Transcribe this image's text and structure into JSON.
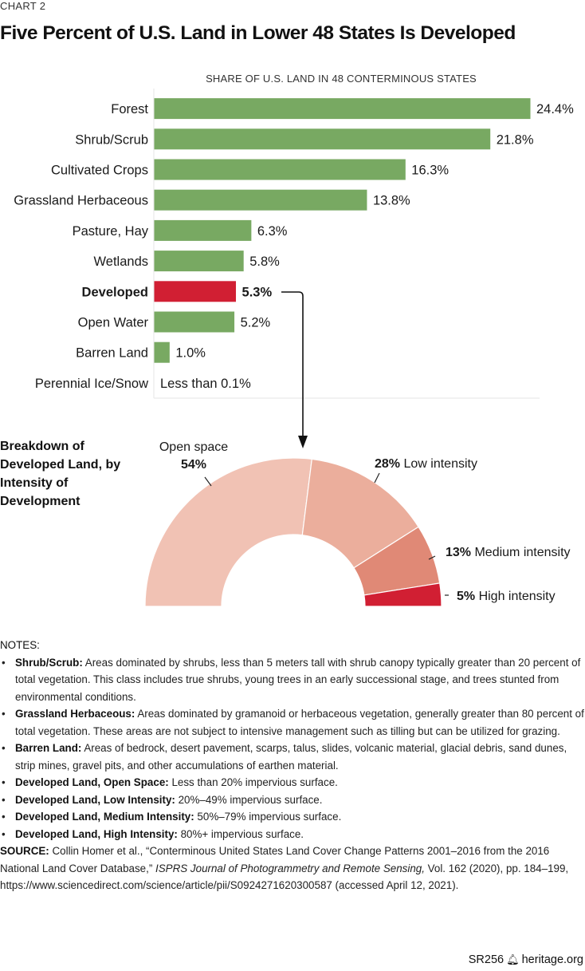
{
  "header": {
    "chart_number": "CHART 2",
    "title": "Five Percent of U.S. Land in Lower 48 States Is Developed"
  },
  "colors": {
    "green_bar": "#78a962",
    "highlight_bar": "#d11f33",
    "open_space": "#f1c2b4",
    "low_intensity": "#ebae9c",
    "medium_intensity": "#e08976",
    "high_intensity": "#d11f33"
  },
  "chart_data": [
    {
      "type": "bar",
      "orientation": "horizontal",
      "title": "SHARE OF U.S. LAND IN 48 CONTERMINOUS STATES",
      "xlabel": "",
      "ylabel": "",
      "unit": "%",
      "grid": false,
      "categories": [
        "Forest",
        "Shrub/Scrub",
        "Cultivated Crops",
        "Grassland Herbaceous",
        "Pasture, Hay",
        "Wetlands",
        "Developed",
        "Open Water",
        "Barren Land",
        "Perennial Ice/Snow"
      ],
      "values": [
        24.4,
        21.8,
        16.3,
        13.8,
        6.3,
        5.8,
        5.3,
        5.2,
        1.0,
        0.0
      ],
      "labels": [
        "24.4%",
        "21.8%",
        "16.3%",
        "13.8%",
        "6.3%",
        "5.8%",
        "5.3%",
        "5.2%",
        "1.0%",
        "Less than 0.1%"
      ],
      "highlight": "Developed",
      "xlim": [
        0,
        24.4
      ]
    },
    {
      "type": "pie",
      "variant": "half-donut",
      "title": "Breakdown of Developed Land, by Intensity of Development",
      "slices": [
        {
          "name": "Open space",
          "value": 54,
          "label": "54%"
        },
        {
          "name": "Low intensity",
          "value": 28,
          "label": "28%"
        },
        {
          "name": "Medium intensity",
          "value": 13,
          "label": "13%"
        },
        {
          "name": "High intensity",
          "value": 5,
          "label": "5%"
        }
      ]
    }
  ],
  "breakdown_title": "Breakdown of Developed Land, by Intensity of Development",
  "notes": {
    "heading": "NOTES:",
    "items": [
      {
        "term": "Shrub/Scrub:",
        "text": " Areas dominated by shrubs, less than 5 meters tall with shrub canopy typically greater than 20 percent of total vegetation. This class includes true shrubs, young trees in an early successional stage, and trees stunted from environmental conditions."
      },
      {
        "term": "Grassland Herbaceous:",
        "text": " Areas dominated by gramanoid or herbaceous vegetation, generally greater than 80 percent of total vegetation. These areas are not subject to intensive management such as tilling but can be utilized for grazing."
      },
      {
        "term": "Barren Land:",
        "text": " Areas of bedrock, desert pavement, scarps, talus, slides, volcanic material, glacial debris, sand dunes, strip mines, gravel pits, and other accumulations of earthen material."
      },
      {
        "term": "Developed Land, Open Space:",
        "text": " Less than 20% impervious surface."
      },
      {
        "term": "Developed Land, Low Intensity:",
        "text": " 20%–49% impervious surface."
      },
      {
        "term": "Developed Land, Medium Intensity:",
        "text": " 50%–79% impervious surface."
      },
      {
        "term": "Developed Land, High Intensity:",
        "text": " 80%+ impervious surface."
      }
    ]
  },
  "source": {
    "label": "SOURCE:",
    "text_before": " Collin Homer et al., “Conterminous United States Land Cover Change Patterns 2001–2016 from the 2016 National Land Cover Database,” ",
    "journal": "ISPRS Journal of Photogrammetry and Remote Sensing,",
    "text_after": " Vol. 162 (2020), pp. 184–199, https://www.sciencedirect.com/science/article/pii/S0924271620300587 (accessed April 12, 2021)."
  },
  "footer": {
    "report_id": "SR256",
    "logo_icon": "liberty-bell-icon",
    "site": "heritage.org"
  }
}
